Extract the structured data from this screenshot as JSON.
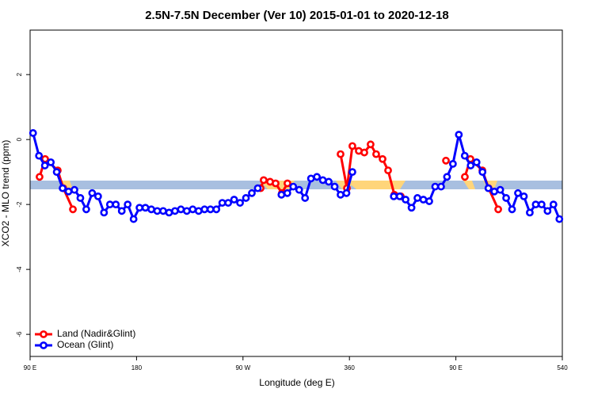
{
  "chart_data": {
    "type": "line",
    "title": "2.5N-7.5N December (Ver 10)   2015-01-01 to 2020-12-18",
    "xlabel": "Longitude (deg E)",
    "ylabel": "XCO2 - MLO trend (ppm)",
    "xlim": [
      90,
      540
    ],
    "ylim": [
      -6.68,
      3.37
    ],
    "xticks": [
      {
        "value": 90,
        "label": "90 E"
      },
      180,
      {
        "value": 270,
        "label": "90 W"
      },
      360,
      {
        "value": 450,
        "label": "90 E"
      },
      540
    ],
    "yticks": [
      2,
      0,
      -2,
      -4,
      -6
    ],
    "legend": "bottom-left",
    "series": [
      {
        "name": "Land (Nadir&Glint)",
        "color": "#ff0000",
        "x": [
          98.0,
          102.7,
          113.4,
          118.1,
          126.2,
          null,
          284.9,
          287.5,
          292.9,
          297.6,
          302.9,
          307.6,
          null,
          352.5,
          357.9,
          362.5,
          367.9,
          372.6,
          377.9,
          382.6,
          388.0,
          392.7,
          398.0,
          403.4,
          null,
          441.6,
          null,
          457.6,
          462.3,
          472.4,
          477.7,
          485.8
        ],
        "values": [
          -1.15,
          -0.6,
          -0.95,
          -1.5,
          -2.15,
          null,
          -1.5,
          -1.25,
          -1.3,
          -1.35,
          -1.65,
          -1.35,
          null,
          -0.45,
          -1.5,
          -0.2,
          -0.35,
          -0.4,
          -0.15,
          -0.45,
          -0.6,
          -0.95,
          -1.7,
          -1.75,
          null,
          -0.65,
          null,
          -1.15,
          -0.6,
          -0.95,
          -1.5,
          -2.15
        ]
      },
      {
        "name": "Ocean (Glint)",
        "color": "#0000ff",
        "x": [
          92.5,
          97.5,
          102.5,
          107.5,
          112.5,
          117.5,
          122.5,
          127.5,
          132.5,
          137.5,
          142.5,
          147.5,
          152.5,
          157.5,
          162.5,
          167.5,
          172.5,
          177.5,
          182.5,
          187.5,
          192.5,
          197.5,
          202.5,
          207.5,
          212.5,
          217.5,
          222.5,
          227.5,
          232.5,
          237.5,
          242.5,
          247.5,
          252.5,
          257.5,
          262.5,
          267.5,
          272.5,
          277.5,
          282.5,
          null,
          302.5,
          307.5,
          312.5,
          317.5,
          322.5,
          327.5,
          332.5,
          337.5,
          342.5,
          347.5,
          352.5,
          357.5,
          362.5,
          null,
          397.5,
          402.5,
          407.5,
          412.5,
          417.5,
          422.5,
          427.5,
          432.5,
          437.5,
          442.5,
          447.5,
          452.5,
          457.5,
          462.5,
          467.5,
          472.5,
          477.5,
          482.5,
          487.5,
          492.5,
          497.5,
          502.5,
          507.5,
          512.5,
          517.5,
          522.5,
          527.5,
          532.5,
          537.5
        ],
        "values": [
          0.2,
          -0.5,
          -0.8,
          -0.7,
          -1.0,
          -1.5,
          -1.6,
          -1.55,
          -1.8,
          -2.15,
          -1.65,
          -1.75,
          -2.25,
          -2.0,
          -2.0,
          -2.2,
          -2.0,
          -2.45,
          -2.1,
          -2.1,
          -2.15,
          -2.2,
          -2.2,
          -2.25,
          -2.2,
          -2.15,
          -2.2,
          -2.15,
          -2.2,
          -2.15,
          -2.15,
          -2.15,
          -1.95,
          -1.95,
          -1.85,
          -1.95,
          -1.8,
          -1.65,
          -1.5,
          null,
          -1.7,
          -1.65,
          -1.45,
          -1.55,
          -1.8,
          -1.2,
          -1.15,
          -1.25,
          -1.3,
          -1.45,
          -1.7,
          -1.65,
          -1.0,
          null,
          -1.75,
          -1.75,
          -1.85,
          -2.1,
          -1.8,
          -1.85,
          -1.9,
          -1.45,
          -1.45,
          -1.15,
          -0.75,
          0.15,
          -0.5,
          -0.8,
          -0.7,
          -1.0,
          -1.5,
          -1.6,
          -1.55,
          -1.8,
          -2.15,
          -1.65,
          -1.75,
          -2.25,
          -2.0,
          -2.0,
          -2.2,
          -2.0,
          -2.45
        ]
      }
    ]
  }
}
